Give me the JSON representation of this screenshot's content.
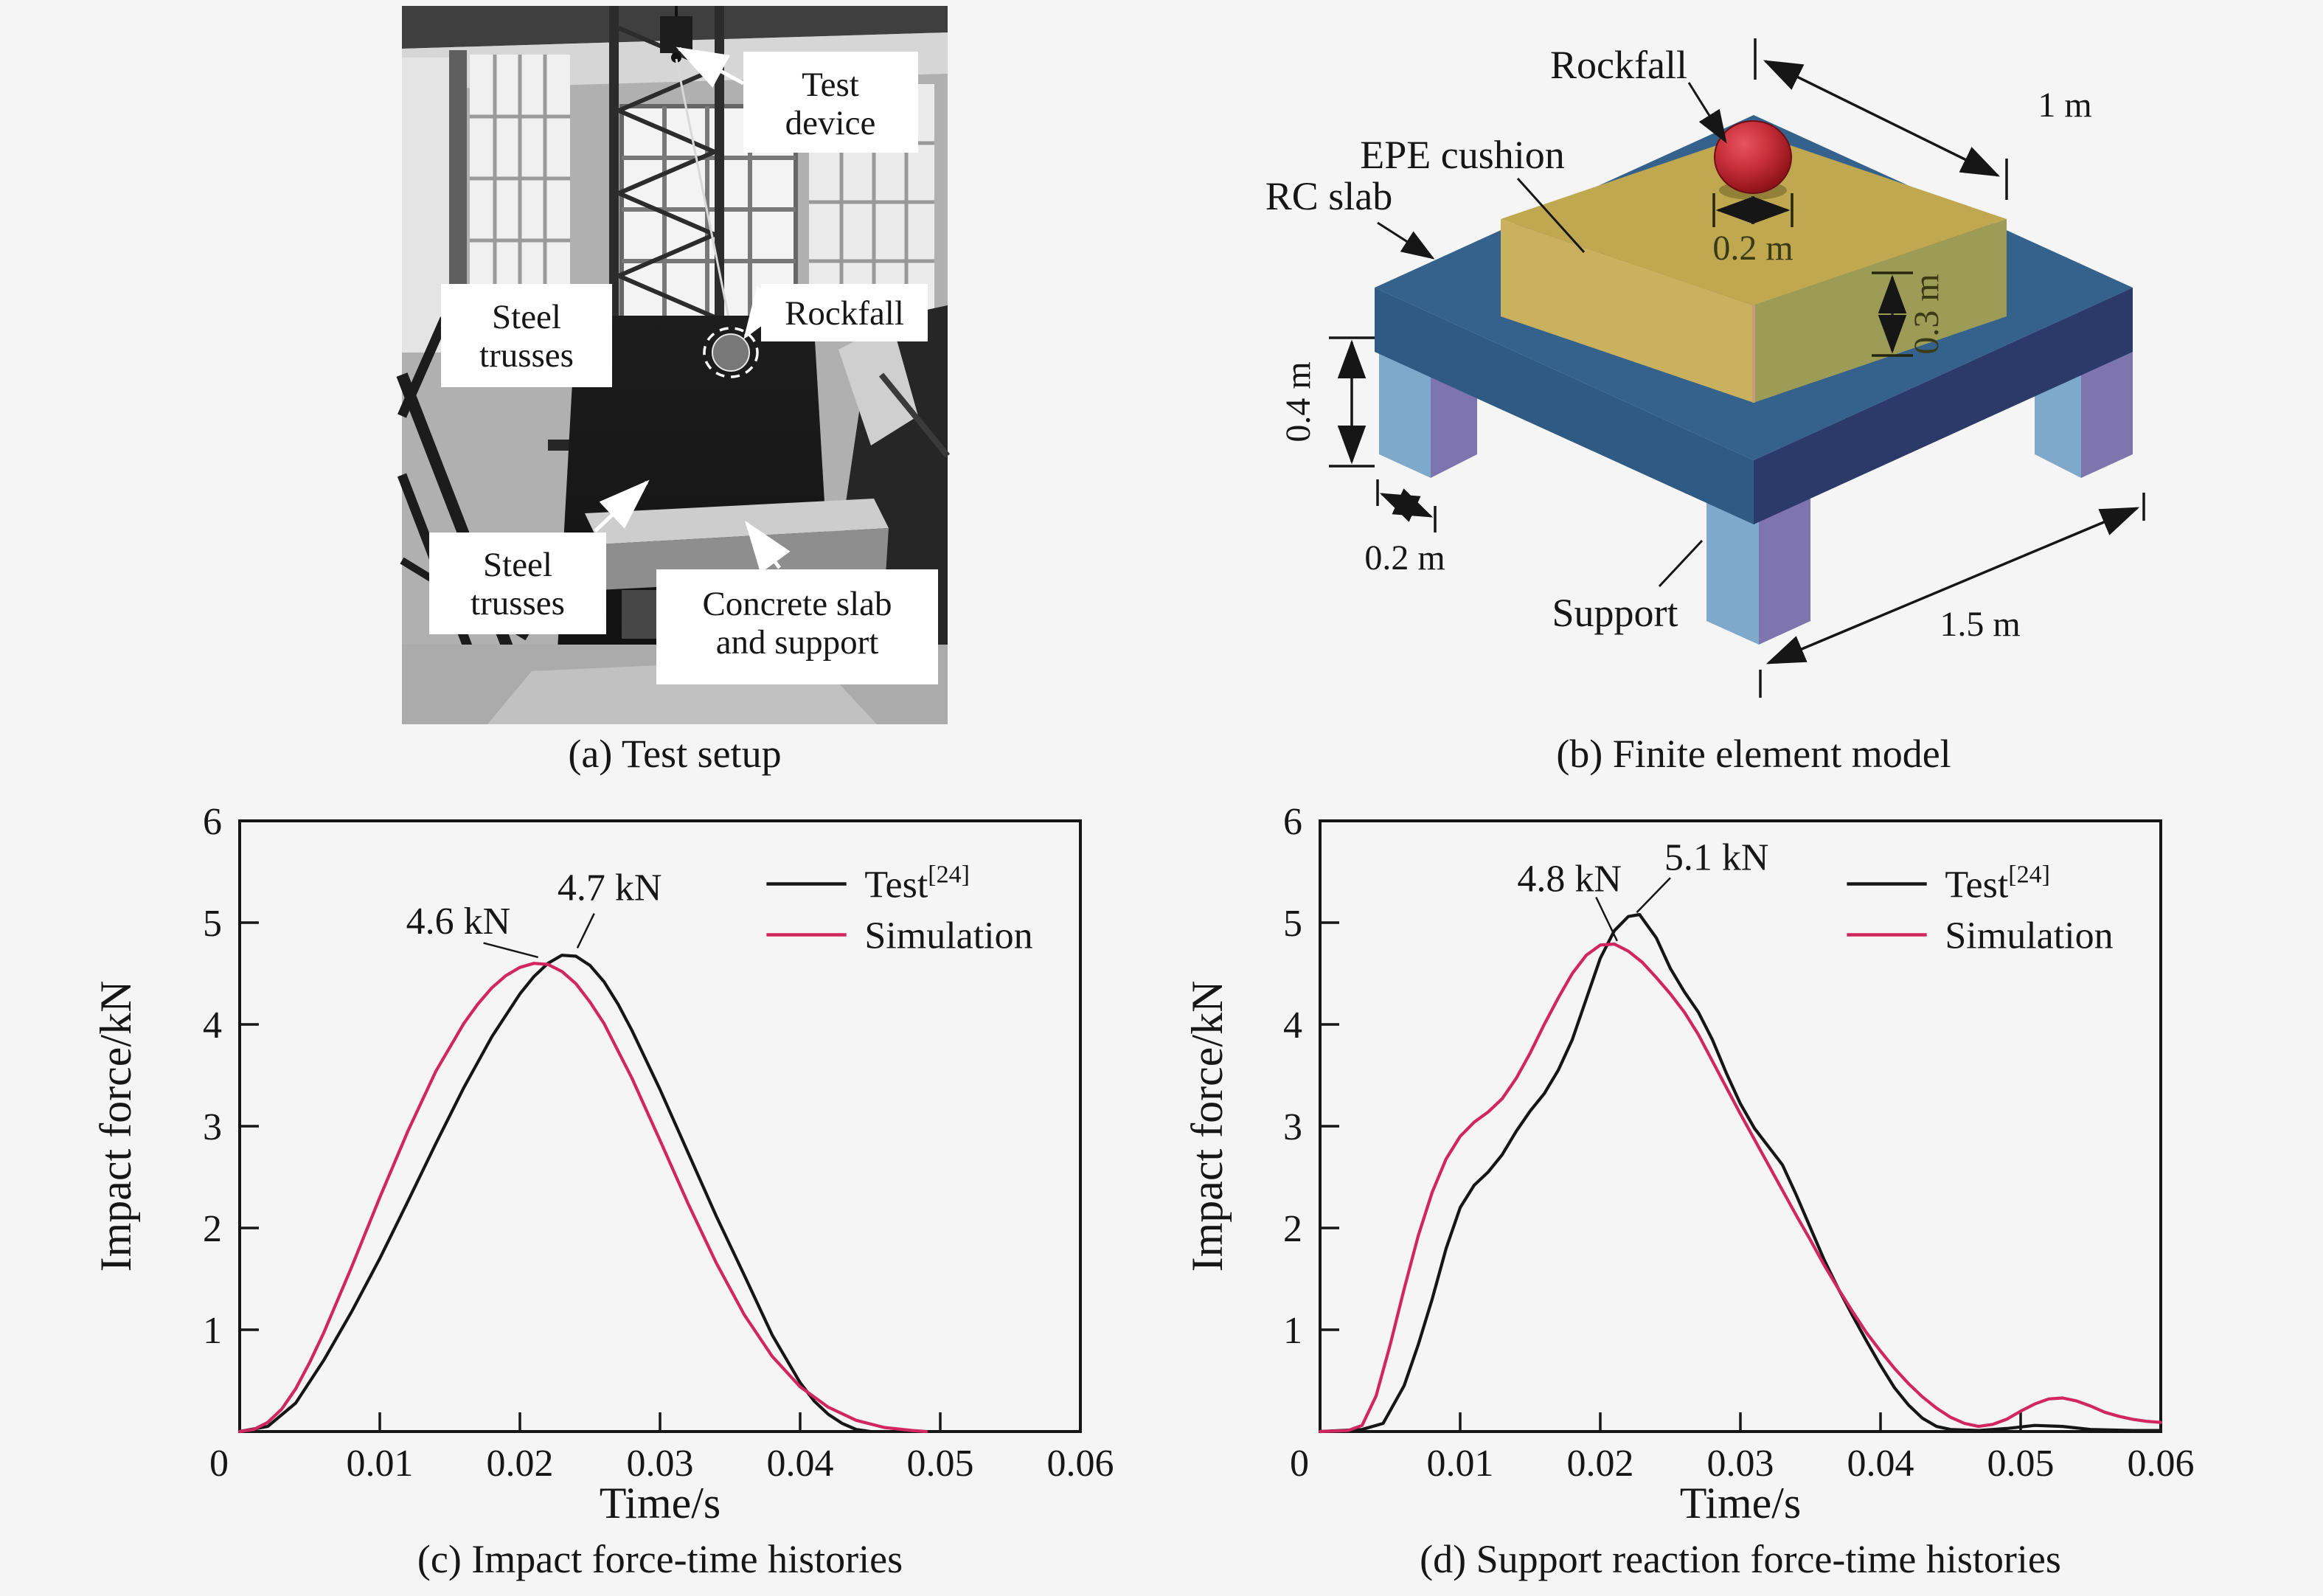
{
  "panel_a": {
    "caption": "(a) Test setup",
    "labels": {
      "test_device": [
        "Test",
        "device"
      ],
      "steel_trusses_upper": [
        "Steel",
        "trusses"
      ],
      "rockfall": [
        "Rockfall"
      ],
      "steel_trusses_lower": [
        "Steel",
        "trusses"
      ],
      "concrete_slab": [
        "Concrete slab",
        "and support"
      ]
    }
  },
  "panel_b": {
    "caption": "(b) Finite element model",
    "labels": {
      "rockfall": "Rockfall",
      "epe_cushion": "EPE cushion",
      "rc_slab": "RC slab",
      "support": "Support"
    },
    "dimensions": {
      "cushion_top_edge": "1 m",
      "rock_diameter": "0.2 m",
      "cushion_height": "0.3 m",
      "support_height": "0.4 m",
      "support_width": "0.2 m",
      "slab_edge": "1.5 m"
    },
    "colors": {
      "slab_top": "#35628C",
      "slab_left": "#2E5A83",
      "slab_right": "#2B3A68",
      "cushion_top": "#C0A850",
      "cushion_left": "#C9B15D",
      "cushion_right": "#9C9C57",
      "cushion_edge": "#C49B7E",
      "leg_left": "#7FA9CB",
      "leg_right": "#7E74AE",
      "rock_red": "#C8303A"
    }
  },
  "chart_data": [
    {
      "type": "line",
      "caption": "(c) Impact force-time histories",
      "xlabel": "Time/s",
      "ylabel": "Impact force/kN",
      "xlim": [
        0,
        0.06
      ],
      "ylim": [
        0,
        6
      ],
      "grid": false,
      "legend_position": "top-right",
      "origin_label": "0",
      "xticks": [
        0.01,
        0.02,
        0.03,
        0.04,
        0.05,
        0.06
      ],
      "xtick_labels": [
        "0.01",
        "0.02",
        "0.03",
        "0.04",
        "0.05",
        "0.06"
      ],
      "yticks": [
        1,
        2,
        3,
        4,
        5,
        6
      ],
      "legend": [
        {
          "label": "Test",
          "sup": "[24]",
          "color": "#161616"
        },
        {
          "label": "Simulation",
          "sup": "",
          "color": "#D2265F"
        }
      ],
      "series": [
        {
          "name": "Test",
          "peak_kN": 4.7,
          "peak_t": 0.023,
          "color": "#161616",
          "points": [
            [
              0,
              0
            ],
            [
              0.002,
              0.05
            ],
            [
              0.004,
              0.28
            ],
            [
              0.006,
              0.7
            ],
            [
              0.008,
              1.18
            ],
            [
              0.01,
              1.7
            ],
            [
              0.012,
              2.26
            ],
            [
              0.014,
              2.83
            ],
            [
              0.016,
              3.38
            ],
            [
              0.018,
              3.88
            ],
            [
              0.02,
              4.3
            ],
            [
              0.021,
              4.47
            ],
            [
              0.022,
              4.6
            ],
            [
              0.023,
              4.68
            ],
            [
              0.024,
              4.67
            ],
            [
              0.025,
              4.58
            ],
            [
              0.026,
              4.42
            ],
            [
              0.027,
              4.2
            ],
            [
              0.028,
              3.94
            ],
            [
              0.03,
              3.36
            ],
            [
              0.032,
              2.74
            ],
            [
              0.034,
              2.12
            ],
            [
              0.036,
              1.54
            ],
            [
              0.038,
              0.95
            ],
            [
              0.04,
              0.48
            ],
            [
              0.041,
              0.3
            ],
            [
              0.042,
              0.17
            ],
            [
              0.043,
              0.08
            ],
            [
              0.044,
              0.02
            ],
            [
              0.045,
              0
            ]
          ]
        },
        {
          "name": "Simulation",
          "peak_kN": 4.6,
          "peak_t": 0.0215,
          "color": "#D2265F",
          "points": [
            [
              0,
              0
            ],
            [
              0.001,
              0.02
            ],
            [
              0.002,
              0.09
            ],
            [
              0.003,
              0.22
            ],
            [
              0.004,
              0.42
            ],
            [
              0.005,
              0.68
            ],
            [
              0.006,
              0.97
            ],
            [
              0.008,
              1.62
            ],
            [
              0.01,
              2.3
            ],
            [
              0.012,
              2.95
            ],
            [
              0.014,
              3.54
            ],
            [
              0.016,
              4.01
            ],
            [
              0.017,
              4.2
            ],
            [
              0.018,
              4.36
            ],
            [
              0.019,
              4.48
            ],
            [
              0.02,
              4.56
            ],
            [
              0.021,
              4.6
            ],
            [
              0.022,
              4.59
            ],
            [
              0.023,
              4.52
            ],
            [
              0.024,
              4.4
            ],
            [
              0.025,
              4.22
            ],
            [
              0.026,
              4.01
            ],
            [
              0.028,
              3.47
            ],
            [
              0.03,
              2.86
            ],
            [
              0.032,
              2.24
            ],
            [
              0.034,
              1.66
            ],
            [
              0.036,
              1.15
            ],
            [
              0.038,
              0.74
            ],
            [
              0.04,
              0.44
            ],
            [
              0.042,
              0.24
            ],
            [
              0.044,
              0.11
            ],
            [
              0.046,
              0.04
            ],
            [
              0.048,
              0.01
            ],
            [
              0.049,
              0
            ]
          ]
        }
      ],
      "annotations": [
        {
          "text": "4.6 kN",
          "text_at": [
            0.0156,
            5.02
          ],
          "line_from": [
            0.0174,
            4.8
          ],
          "line_to": [
            0.0213,
            4.66
          ]
        },
        {
          "text": "4.7 kN",
          "text_at": [
            0.0264,
            5.35
          ],
          "line_from": [
            0.0253,
            5.09
          ],
          "line_to": [
            0.0241,
            4.75
          ]
        }
      ]
    },
    {
      "type": "line",
      "caption": "(d) Support reaction force-time histories",
      "xlabel": "Time/s",
      "ylabel": "Impact force/kN",
      "xlim": [
        0,
        0.06
      ],
      "ylim": [
        0,
        6
      ],
      "grid": false,
      "legend_position": "top-right",
      "origin_label": "0",
      "xticks": [
        0.01,
        0.02,
        0.03,
        0.04,
        0.05,
        0.06
      ],
      "xtick_labels": [
        "0.01",
        "0.02",
        "0.03",
        "0.04",
        "0.05",
        "0.06"
      ],
      "yticks": [
        1,
        2,
        3,
        4,
        5,
        6
      ],
      "legend": [
        {
          "label": "Test",
          "sup": "[24]",
          "color": "#161616"
        },
        {
          "label": "Simulation",
          "sup": "",
          "color": "#D2265F"
        }
      ],
      "series": [
        {
          "name": "Test",
          "peak_kN": 5.1,
          "peak_t": 0.0225,
          "color": "#161616",
          "points": [
            [
              0,
              0
            ],
            [
              0.003,
              0.02
            ],
            [
              0.0045,
              0.08
            ],
            [
              0.006,
              0.45
            ],
            [
              0.007,
              0.85
            ],
            [
              0.008,
              1.3
            ],
            [
              0.009,
              1.8
            ],
            [
              0.01,
              2.2
            ],
            [
              0.011,
              2.42
            ],
            [
              0.012,
              2.55
            ],
            [
              0.013,
              2.72
            ],
            [
              0.014,
              2.95
            ],
            [
              0.015,
              3.15
            ],
            [
              0.016,
              3.32
            ],
            [
              0.017,
              3.55
            ],
            [
              0.018,
              3.85
            ],
            [
              0.019,
              4.25
            ],
            [
              0.02,
              4.65
            ],
            [
              0.021,
              4.92
            ],
            [
              0.022,
              5.06
            ],
            [
              0.0228,
              5.08
            ],
            [
              0.024,
              4.85
            ],
            [
              0.025,
              4.55
            ],
            [
              0.026,
              4.32
            ],
            [
              0.027,
              4.12
            ],
            [
              0.028,
              3.85
            ],
            [
              0.029,
              3.52
            ],
            [
              0.03,
              3.22
            ],
            [
              0.031,
              2.98
            ],
            [
              0.032,
              2.8
            ],
            [
              0.033,
              2.62
            ],
            [
              0.034,
              2.32
            ],
            [
              0.035,
              2.0
            ],
            [
              0.036,
              1.68
            ],
            [
              0.037,
              1.4
            ],
            [
              0.038,
              1.14
            ],
            [
              0.039,
              0.89
            ],
            [
              0.04,
              0.65
            ],
            [
              0.041,
              0.43
            ],
            [
              0.042,
              0.26
            ],
            [
              0.043,
              0.13
            ],
            [
              0.044,
              0.05
            ],
            [
              0.045,
              0.02
            ],
            [
              0.047,
              0.01
            ],
            [
              0.049,
              0.03
            ],
            [
              0.051,
              0.06
            ],
            [
              0.053,
              0.05
            ],
            [
              0.055,
              0.02
            ],
            [
              0.058,
              0.01
            ],
            [
              0.06,
              0.01
            ]
          ]
        },
        {
          "name": "Simulation",
          "peak_kN": 4.8,
          "peak_t": 0.0205,
          "color": "#D2265F",
          "points": [
            [
              0,
              0
            ],
            [
              0.002,
              0.01
            ],
            [
              0.003,
              0.06
            ],
            [
              0.004,
              0.35
            ],
            [
              0.005,
              0.85
            ],
            [
              0.006,
              1.4
            ],
            [
              0.007,
              1.92
            ],
            [
              0.008,
              2.35
            ],
            [
              0.009,
              2.68
            ],
            [
              0.01,
              2.9
            ],
            [
              0.011,
              3.04
            ],
            [
              0.012,
              3.14
            ],
            [
              0.013,
              3.27
            ],
            [
              0.014,
              3.47
            ],
            [
              0.015,
              3.72
            ],
            [
              0.016,
              4.0
            ],
            [
              0.017,
              4.26
            ],
            [
              0.018,
              4.5
            ],
            [
              0.019,
              4.68
            ],
            [
              0.02,
              4.78
            ],
            [
              0.021,
              4.79
            ],
            [
              0.022,
              4.72
            ],
            [
              0.023,
              4.61
            ],
            [
              0.024,
              4.46
            ],
            [
              0.025,
              4.3
            ],
            [
              0.026,
              4.12
            ],
            [
              0.027,
              3.9
            ],
            [
              0.028,
              3.64
            ],
            [
              0.029,
              3.38
            ],
            [
              0.03,
              3.12
            ],
            [
              0.031,
              2.87
            ],
            [
              0.032,
              2.62
            ],
            [
              0.033,
              2.37
            ],
            [
              0.034,
              2.12
            ],
            [
              0.035,
              1.88
            ],
            [
              0.036,
              1.63
            ],
            [
              0.037,
              1.4
            ],
            [
              0.038,
              1.18
            ],
            [
              0.039,
              0.97
            ],
            [
              0.04,
              0.79
            ],
            [
              0.041,
              0.62
            ],
            [
              0.042,
              0.47
            ],
            [
              0.043,
              0.34
            ],
            [
              0.044,
              0.23
            ],
            [
              0.045,
              0.14
            ],
            [
              0.046,
              0.08
            ],
            [
              0.047,
              0.05
            ],
            [
              0.048,
              0.07
            ],
            [
              0.049,
              0.12
            ],
            [
              0.05,
              0.2
            ],
            [
              0.051,
              0.27
            ],
            [
              0.052,
              0.32
            ],
            [
              0.053,
              0.33
            ],
            [
              0.054,
              0.3
            ],
            [
              0.055,
              0.25
            ],
            [
              0.056,
              0.19
            ],
            [
              0.057,
              0.15
            ],
            [
              0.058,
              0.12
            ],
            [
              0.059,
              0.1
            ],
            [
              0.06,
              0.09
            ]
          ]
        }
      ],
      "annotations": [
        {
          "text": "4.8 kN",
          "text_at": [
            0.0178,
            5.44
          ],
          "line_from": [
            0.0197,
            5.25
          ],
          "line_to": [
            0.0212,
            4.82
          ]
        },
        {
          "text": "5.1 kN",
          "text_at": [
            0.0283,
            5.65
          ],
          "line_from": [
            0.025,
            5.44
          ],
          "line_to": [
            0.0226,
            5.1
          ]
        }
      ]
    }
  ]
}
